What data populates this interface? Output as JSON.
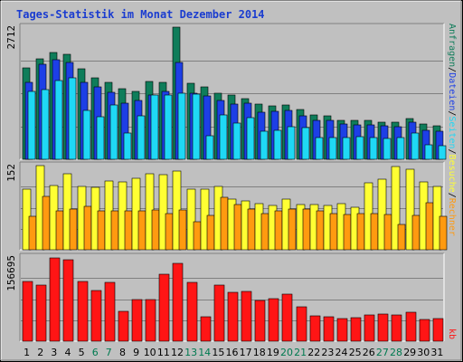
{
  "chart_data": {
    "title": "Tages-Statistik im Monat Dezember 2014",
    "x": [
      "1",
      "2",
      "3",
      "4",
      "5",
      "6",
      "7",
      "8",
      "9",
      "10",
      "11",
      "12",
      "13",
      "14",
      "15",
      "16",
      "17",
      "18",
      "19",
      "20",
      "21",
      "22",
      "23",
      "24",
      "25",
      "26",
      "27",
      "28",
      "29",
      "30",
      "31"
    ],
    "weekend_days": [
      "6",
      "7",
      "13",
      "14",
      "20",
      "21",
      "27",
      "28"
    ],
    "colors": {
      "background": "#c0c0c0",
      "weekday_label": "#000000",
      "weekend_label": "#007a50",
      "title": "#1a3cd0",
      "hits": "#0f7d5a",
      "files": "#1d3fe6",
      "pages": "#1fd8f5",
      "visits": "#ffff33",
      "sites": "#ff9a10",
      "kb": "#ff1515"
    },
    "panels": [
      {
        "type": "bar",
        "max_label": "2712",
        "ylim": [
          0,
          2712
        ],
        "series": [
          {
            "name": "Anfragen",
            "key": "hits",
            "values": [
              1870,
              2070,
              2200,
              2150,
              1860,
              1670,
              1570,
              1450,
              1390,
              1590,
              1580,
              2712,
              1560,
              1480,
              1350,
              1320,
              1240,
              1130,
              1100,
              1110,
              1020,
              910,
              890,
              800,
              800,
              800,
              770,
              760,
              840,
              720,
              690
            ]
          },
          {
            "name": "Dateien",
            "key": "files",
            "values": [
              1580,
              1950,
              2050,
              1990,
              1570,
              1490,
              1380,
              1150,
              1200,
              1310,
              1390,
              1990,
              1360,
              1300,
              1210,
              1130,
              1160,
              960,
              980,
              1000,
              900,
              800,
              790,
              720,
              710,
              700,
              690,
              660,
              760,
              600,
              580
            ]
          },
          {
            "name": "Seiten",
            "key": "pages",
            "values": [
              1400,
              1430,
              1620,
              1670,
              1000,
              870,
              1120,
              530,
              890,
              1310,
              1320,
              1350,
              1330,
              480,
              910,
              740,
              850,
              580,
              600,
              660,
              650,
              450,
              440,
              450,
              460,
              450,
              420,
              440,
              530,
              300,
              270
            ]
          }
        ]
      },
      {
        "type": "bar",
        "max_label": "152",
        "ylim": [
          0,
          152
        ],
        "series": [
          {
            "name": "Besuche",
            "key": "visits",
            "values": [
              109,
              152,
              116,
              138,
              115,
              113,
              124,
              123,
              129,
              137,
              136,
              143,
              110,
              110,
              115,
              91,
              88,
              83,
              80,
              92,
              82,
              82,
              80,
              84,
              77,
              121,
              127,
              151,
              146,
              123,
              114
            ]
          },
          {
            "name": "Rechner",
            "key": "sites",
            "values": [
              61,
              96,
              70,
              73,
              78,
              70,
              70,
              71,
              70,
              72,
              66,
              72,
              51,
              62,
              95,
              82,
              73,
              66,
              70,
              74,
              74,
              70,
              66,
              64,
              65,
              65,
              64,
              45,
              62,
              85,
              61
            ]
          }
        ]
      },
      {
        "type": "bar",
        "max_label": "156695",
        "ylim": [
          0,
          156695
        ],
        "series": [
          {
            "name": "kb",
            "key": "kb",
            "values": [
              111200,
              105000,
              155000,
              151000,
              111500,
              94500,
              109200,
              56000,
              76800,
              76800,
              124600,
              145200,
              108700,
              46200,
              105000,
              90200,
              92500,
              75500,
              78900,
              87000,
              64400,
              47700,
              46200,
              41600,
              43100,
              48500,
              49900,
              48500,
              54200,
              40100,
              41600
            ]
          }
        ]
      }
    ],
    "side_labels": [
      {
        "text": "Anfragen",
        "key": "hits"
      },
      {
        "text": "/",
        "key": "sep"
      },
      {
        "text": "Dateien",
        "key": "files"
      },
      {
        "text": "/",
        "key": "sep"
      },
      {
        "text": "Seiten",
        "key": "pages"
      },
      {
        "text": "/",
        "key": "sep"
      },
      {
        "text": "Besuche",
        "key": "visits"
      },
      {
        "text": "/",
        "key": "sep"
      },
      {
        "text": "Rechner",
        "key": "sites"
      }
    ],
    "kb_side_label": "kb"
  }
}
